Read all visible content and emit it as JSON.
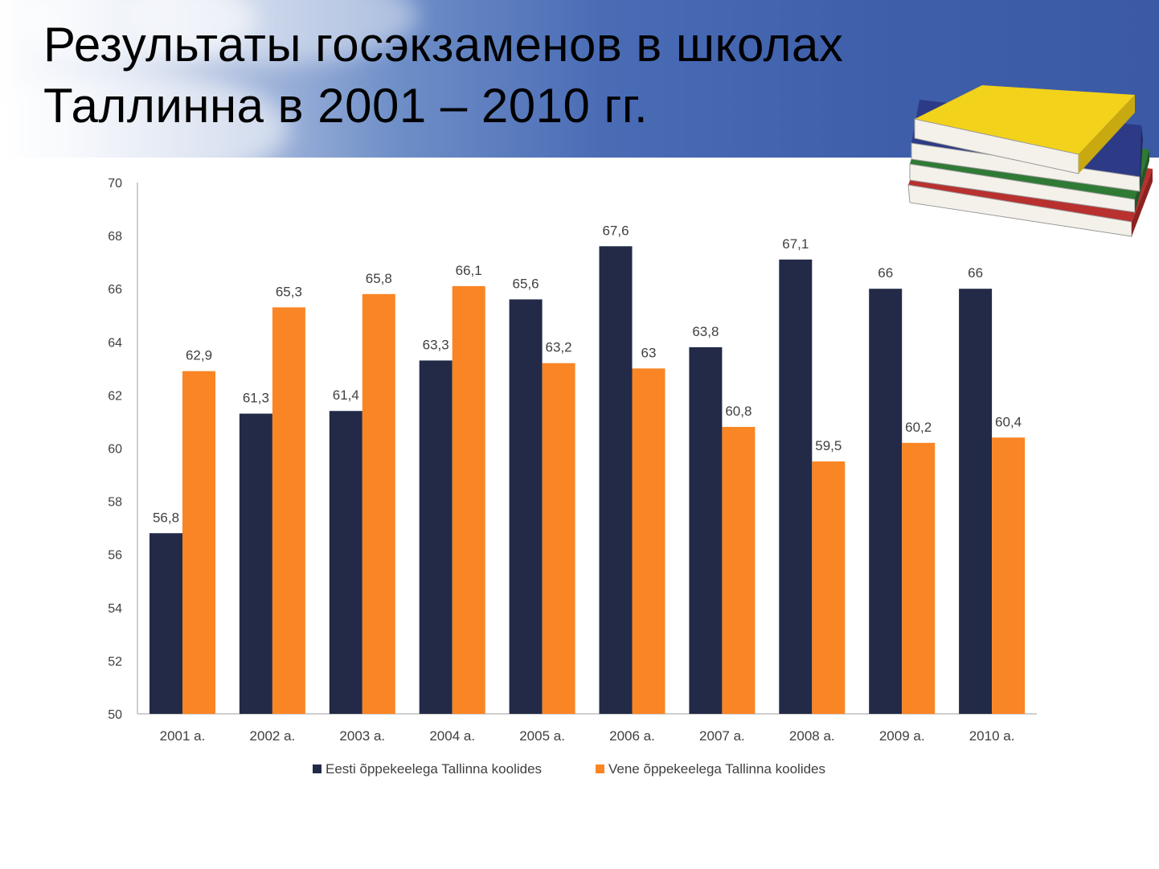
{
  "slide": {
    "title_line1": "Результаты госэкзаменов в школах",
    "title_line2": "Таллинна в 2001 – 2010 гг."
  },
  "colors": {
    "series1": "#222a48",
    "series2": "#fa8524",
    "axis": "#bfbfbf",
    "text": "#404040",
    "banner": "#3f5fab"
  },
  "decor": {
    "books_icon": "books-stack-icon",
    "book_colors": [
      "#b8312f",
      "#2f7a35",
      "#2d3a86",
      "#f2d21b"
    ]
  },
  "chart_data": {
    "type": "bar",
    "title": "",
    "xlabel": "",
    "ylabel": "",
    "ylim": [
      50,
      70
    ],
    "yticks": [
      50,
      52,
      54,
      56,
      58,
      60,
      62,
      64,
      66,
      68,
      70
    ],
    "grid": false,
    "legend_position": "bottom",
    "categories": [
      "2001 a.",
      "2002 a.",
      "2003 a.",
      "2004 a.",
      "2005 a.",
      "2006 a.",
      "2007 a.",
      "2008 a.",
      "2009 a.",
      "2010 a."
    ],
    "series": [
      {
        "name": "Eesti õppekeelega Tallinna koolides",
        "values": [
          56.8,
          61.3,
          61.4,
          63.3,
          65.6,
          67.6,
          63.8,
          67.1,
          66,
          66
        ],
        "labels": [
          "56,8",
          "61,3",
          "61,4",
          "63,3",
          "65,6",
          "67,6",
          "63,8",
          "67,1",
          "66",
          "66"
        ]
      },
      {
        "name": "Vene õppekeelega Tallinna koolides",
        "values": [
          62.9,
          65.3,
          65.8,
          66.1,
          63.2,
          63,
          60.8,
          59.5,
          60.2,
          60.4
        ],
        "labels": [
          "62,9",
          "65,3",
          "65,8",
          "66,1",
          "63,2",
          "63",
          "60,8",
          "59,5",
          "60,2",
          "60,4"
        ]
      }
    ]
  }
}
